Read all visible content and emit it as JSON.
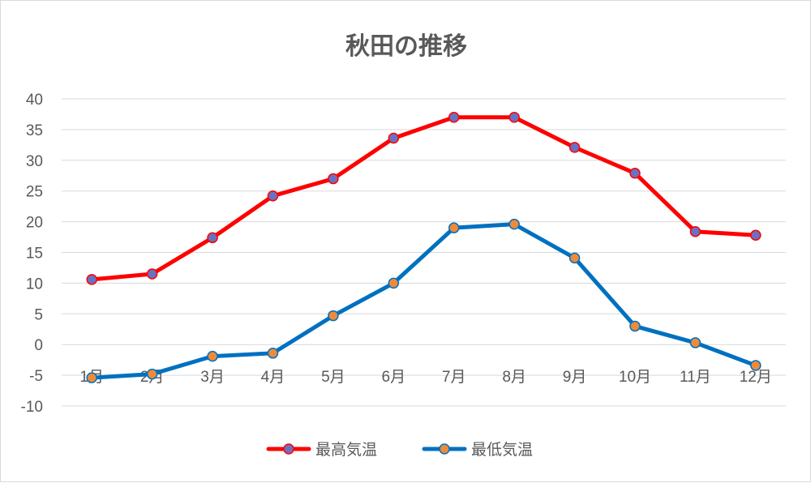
{
  "chart_data": {
    "type": "line",
    "title": "秋田の推移",
    "xlabel": "",
    "ylabel": "",
    "categories": [
      "1月",
      "2月",
      "3月",
      "4月",
      "5月",
      "6月",
      "7月",
      "8月",
      "9月",
      "10月",
      "11月",
      "12月"
    ],
    "yticks": [
      "40",
      "35",
      "30",
      "25",
      "20",
      "15",
      "10",
      "5",
      "0",
      "-5",
      "-10"
    ],
    "ylim": [
      -10,
      40
    ],
    "grid": true,
    "legend_position": "bottom",
    "series": [
      {
        "name": "最高気温",
        "color": "#ff0000",
        "marker_color": "#6a71c3",
        "values": [
          10.6,
          11.5,
          17.4,
          24.2,
          27.0,
          33.6,
          37.0,
          37.0,
          32.1,
          27.9,
          18.4,
          17.8
        ]
      },
      {
        "name": "最低気温",
        "color": "#0070c0",
        "marker_color": "#ed8b3a",
        "values": [
          -5.4,
          -4.8,
          -1.9,
          -1.4,
          4.7,
          10.0,
          19.0,
          19.6,
          14.1,
          3.0,
          0.3,
          -3.4
        ]
      }
    ]
  }
}
